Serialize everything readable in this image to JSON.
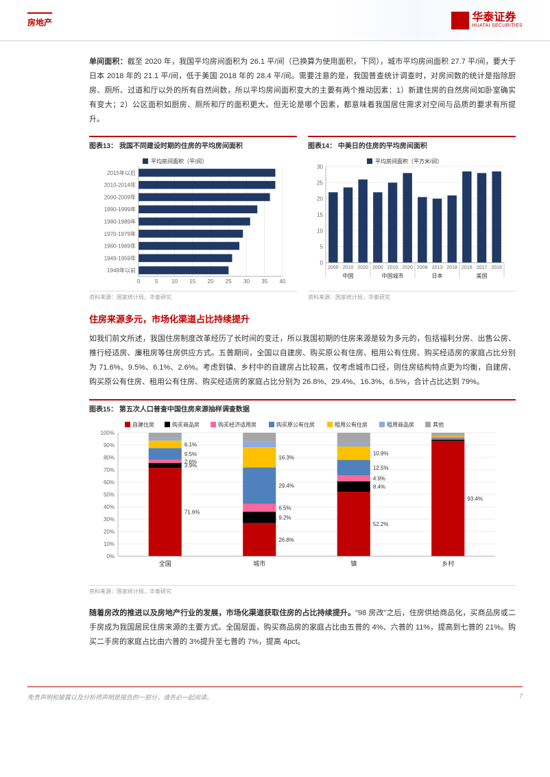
{
  "header": {
    "category": "房地产",
    "logo_text": "华泰证券",
    "logo_sub": "HUATAI SECURITIES"
  },
  "para1": {
    "lead": "单间面积：",
    "text": "截至 2020 年，我国平均房间面积为 26.1 平/间（已换算为使用面积，下同），城市平均房间面积 27.7 平/间，要大于日本 2018 年的 21.1 平/间，低于美国 2018 年的 28.4 平/间。需要注意的是，我国普查统计调查时，对房间数的统计是指除厨房、厕所、过道和厅以外的所有自然间数，所以平均房间面积变大的主要有两个推动因素：1）新建住房的自然房间如卧室确实有变大；2）公区面积如厨房、厕所和厅的面积更大。但无论是哪个因素，都意味着我国居住需求对空间与品质的要求有所提升。"
  },
  "chart13": {
    "title": "图表13：  我国不同建设时期的住房的平均房间面积",
    "legend": "平均房间面积（平/间）",
    "categories": [
      "2015年以后",
      "2010-2014年",
      "2000-2009年",
      "1990-1999年",
      "1980-1989年",
      "1970-1979年",
      "1960-1969年",
      "1949-1959年",
      "1949年以前"
    ],
    "values": [
      38,
      38,
      36.5,
      33,
      31,
      29,
      28,
      26,
      25
    ],
    "xmax": 40,
    "xtick_step": 5,
    "bar_color": "#203864",
    "grid_color": "#d9d9d9",
    "label_fontsize": 8,
    "source": "资料来源：国家统计局，华泰研究"
  },
  "chart14": {
    "title": "图表14：  中美日的住房的平均房间面积",
    "legend": "平均房间面积（平方米/间）",
    "groups": [
      "中国",
      "中国城市",
      "日本",
      "美国"
    ],
    "labels": [
      "2000",
      "2010",
      "2020",
      "2000",
      "2010",
      "2020",
      "2008",
      "2013",
      "2018",
      "2016",
      "2017",
      "2018"
    ],
    "values": [
      22,
      23.5,
      26,
      22,
      25,
      28,
      20.5,
      20,
      21,
      28.5,
      28,
      28.5
    ],
    "ymax": 30,
    "ytick_step": 5,
    "bar_color": "#203864",
    "grid_color": "#d9d9d9",
    "label_fontsize": 7,
    "source": "资料来源：国家统计局，华泰研究"
  },
  "section2_title": "住房来源多元，市场化渠道占比持续提升",
  "para2": "如我们前文所述，我国住房制度改革经历了长时间的变迁，所以我国初期的住房来源是较为多元的，包括福利分房、出售公房、推行经适房、廉租房等住房供应方式。五普期间，全国以自建房、购买原公有住房、租用公有住房、购买经适房的家庭占比分别为 71.6%、9.5%、6.1%、2.6%。考虑到镇、乡村中的自建房占比较高，仅考虑城市口径，则住房结构特点更为均衡，自建房、购买原公有住房、租用公有住房、购买经适房的家庭占比分别为 26.8%、29.4%、16.3%、6.5%，合计占比达到 79%。",
  "chart15": {
    "title": "图表15：  第五次人口普查中国住房来源抽样调查数据",
    "legend": [
      "自建住房",
      "购买商品房",
      "购买经济适用房",
      "购买原公有住房",
      "租用公有住房",
      "租用商品房",
      "其他"
    ],
    "legend_colors": [
      "#c00000",
      "#000000",
      "#ff6699",
      "#4f81bd",
      "#ffc000",
      "#8faadc",
      "#a6a6a6"
    ],
    "categories": [
      "全国",
      "城市",
      "镇",
      "乡村"
    ],
    "stacks": [
      {
        "seg": [
          71.6,
          3.9,
          2.6,
          9.5,
          6.1,
          2.0,
          4.3
        ],
        "labels": [
          "71.6%",
          "3.9%",
          "2.6%",
          "9.5%",
          "6.1%",
          "",
          ""
        ]
      },
      {
        "seg": [
          26.8,
          9.2,
          6.5,
          29.4,
          16.3,
          5.0,
          6.8
        ],
        "labels": [
          "26.8%",
          "9.2%",
          "6.5%",
          "29.4%",
          "16.3%",
          "",
          ""
        ]
      },
      {
        "seg": [
          52.2,
          8.4,
          4.9,
          12.5,
          10.9,
          3.0,
          8.1
        ],
        "labels": [
          "52.2%",
          "8.4%",
          "4.9%",
          "12.5%",
          "10.9%",
          "",
          ""
        ]
      },
      {
        "seg": [
          93.4,
          1.0,
          0.8,
          1.0,
          1.0,
          0.8,
          2.0
        ],
        "labels": [
          "93.4%",
          "",
          "",
          "",
          "",
          "",
          ""
        ]
      }
    ],
    "ymax": 100,
    "ytick_step": 10,
    "grid_color": "#d9d9d9",
    "source": "资料来源：国家统计局，华泰研究"
  },
  "para3": {
    "lead": "随着房改的推进以及房地产行业的发展，市场化渠道获取住房的占比持续提升。",
    "text": "\"98 房改\"之后，住房供给商品化，买商品房或二手房成为我国居民住房来源的主要方式。全国层面，购买商品房的家庭占比由五普的 4%、六普的 11%，提高到七普的 21%。购买二手房的家庭占比由六普的 3%提升至七普的 7%，提高 4pct。"
  },
  "footer": {
    "disclaimer": "免责声明和披露以及分析师声明是报告的一部分，请务必一起阅读。",
    "page": "7"
  }
}
